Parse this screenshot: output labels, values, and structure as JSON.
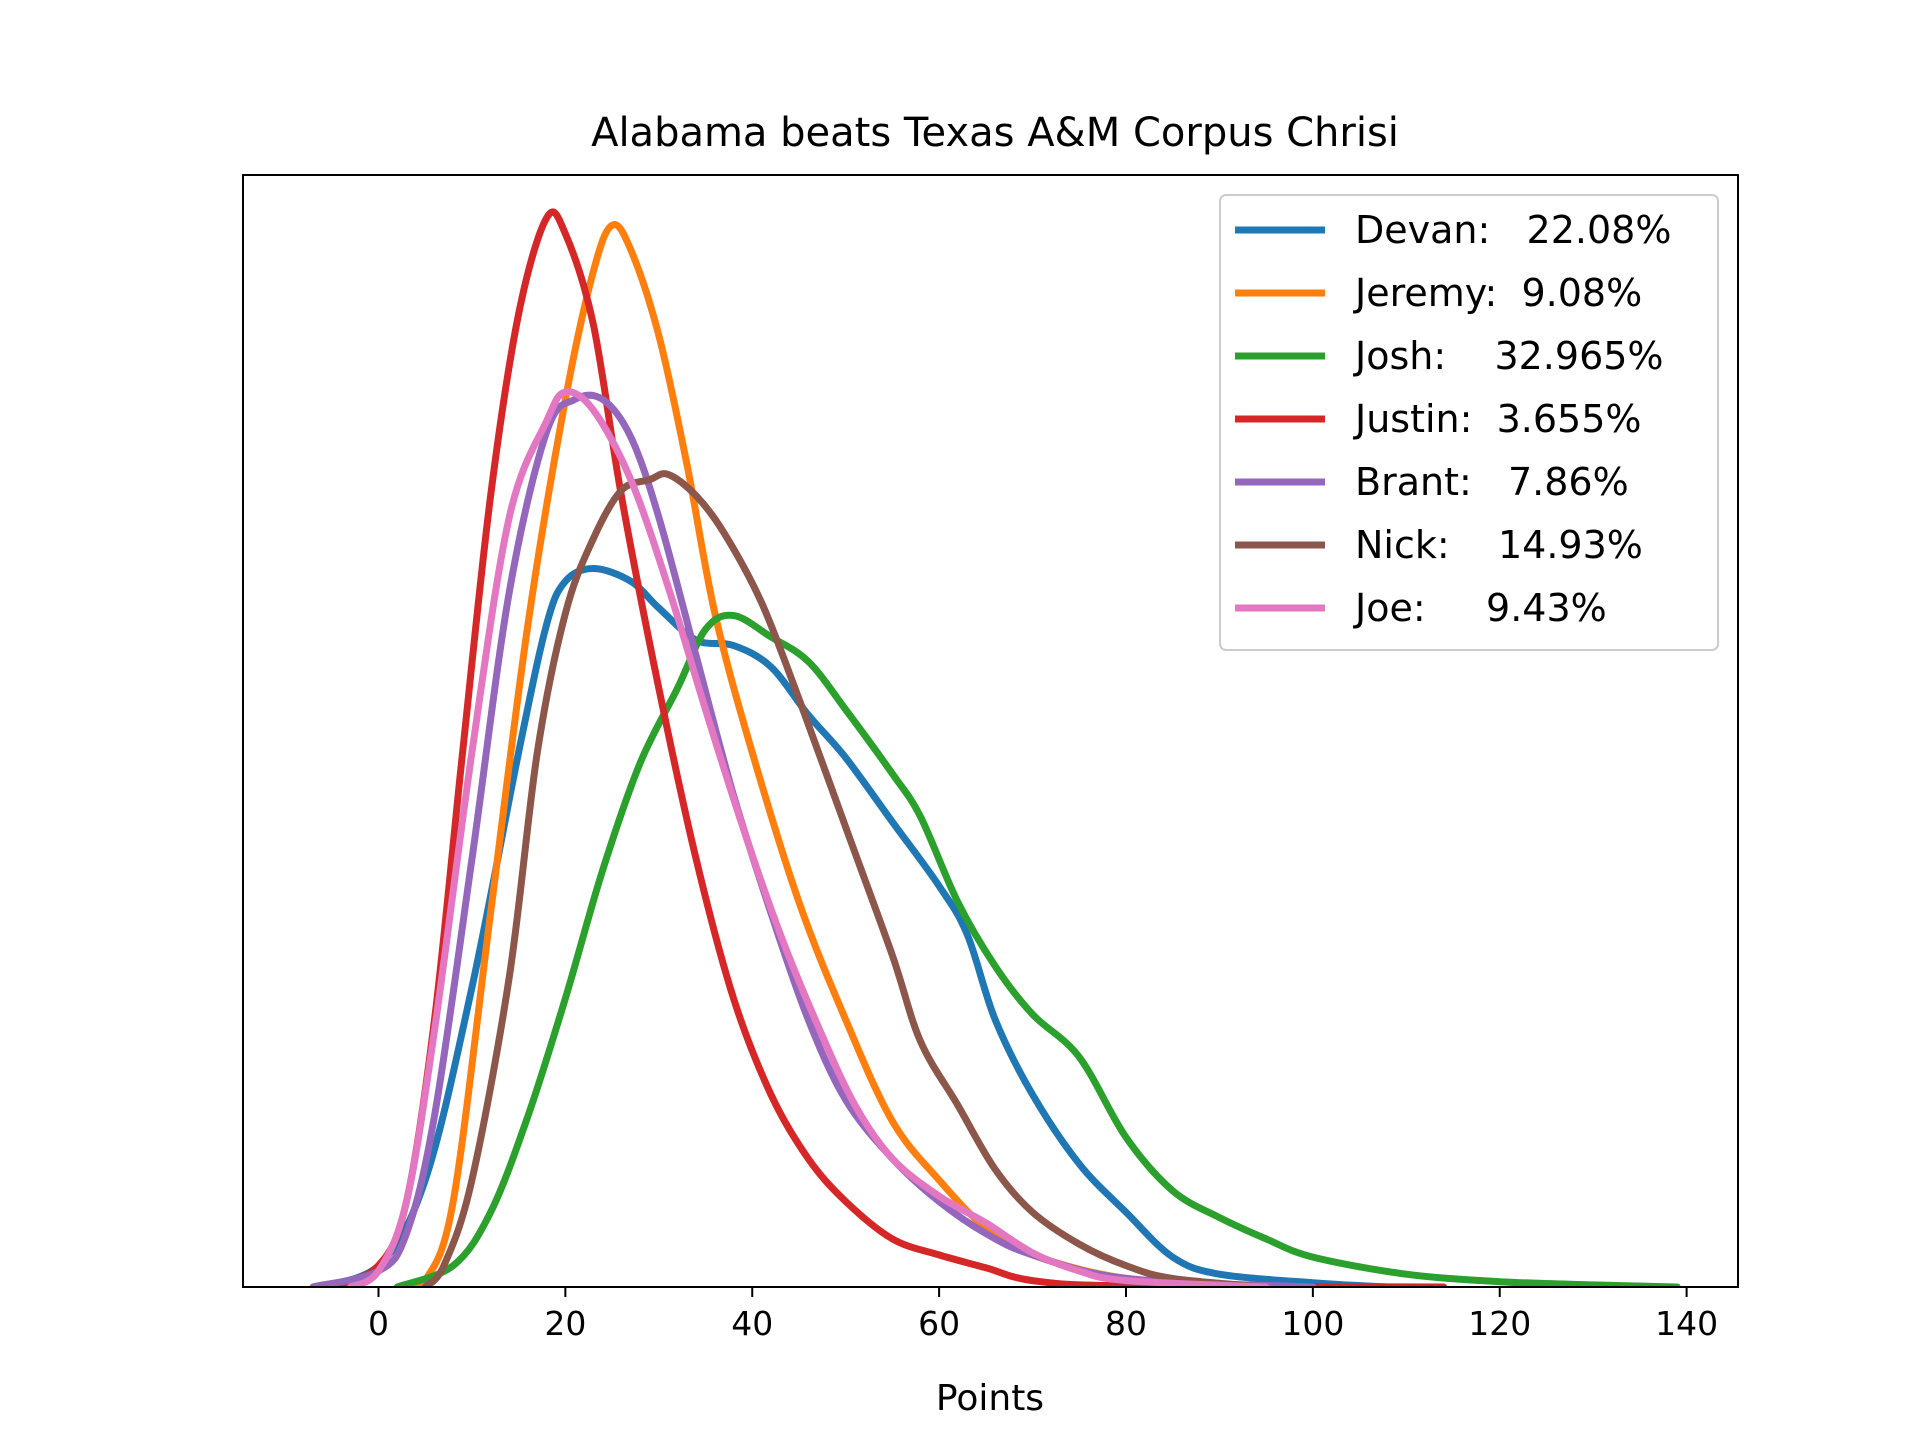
{
  "chart_data": {
    "type": "line",
    "title": "Alabama beats Texas A&M Corpus Chrisi",
    "xlabel": "Points",
    "ylabel": "",
    "xlim": [
      -14.5,
      145.5
    ],
    "ylim": [
      0,
      1.04
    ],
    "xticks": [
      0,
      20,
      40,
      60,
      80,
      100,
      120,
      140
    ],
    "grid": false,
    "legend_position": "top-right",
    "series": [
      {
        "name": "Devan:   22.08%",
        "color": "#1f77b4",
        "points": [
          [
            -7,
            0
          ],
          [
            0,
            0.02
          ],
          [
            5,
            0.1
          ],
          [
            10,
            0.28
          ],
          [
            15,
            0.5
          ],
          [
            18,
            0.62
          ],
          [
            20,
            0.66
          ],
          [
            23,
            0.672
          ],
          [
            27,
            0.66
          ],
          [
            30,
            0.635
          ],
          [
            34,
            0.605
          ],
          [
            38,
            0.6
          ],
          [
            42,
            0.58
          ],
          [
            46,
            0.535
          ],
          [
            50,
            0.495
          ],
          [
            55,
            0.435
          ],
          [
            60,
            0.375
          ],
          [
            63,
            0.33
          ],
          [
            66,
            0.25
          ],
          [
            70,
            0.18
          ],
          [
            75,
            0.115
          ],
          [
            80,
            0.07
          ],
          [
            85,
            0.028
          ],
          [
            90,
            0.012
          ],
          [
            100,
            0.004
          ],
          [
            108,
            0
          ]
        ]
      },
      {
        "name": "Jeremy:  9.08%",
        "color": "#ff7f0e",
        "points": [
          [
            3,
            0
          ],
          [
            5,
            0.006
          ],
          [
            8,
            0.08
          ],
          [
            12,
            0.35
          ],
          [
            16,
            0.62
          ],
          [
            20,
            0.83
          ],
          [
            23,
            0.95
          ],
          [
            25,
            0.993
          ],
          [
            27,
            0.97
          ],
          [
            30,
            0.89
          ],
          [
            33,
            0.77
          ],
          [
            36,
            0.63
          ],
          [
            40,
            0.5
          ],
          [
            45,
            0.36
          ],
          [
            50,
            0.25
          ],
          [
            55,
            0.155
          ],
          [
            60,
            0.1
          ],
          [
            65,
            0.055
          ],
          [
            70,
            0.03
          ],
          [
            80,
            0.008
          ],
          [
            95,
            0
          ]
        ]
      },
      {
        "name": "Josh:    32.965%",
        "color": "#2ca02c",
        "points": [
          [
            2,
            0
          ],
          [
            8,
            0.02
          ],
          [
            12,
            0.07
          ],
          [
            16,
            0.16
          ],
          [
            20,
            0.27
          ],
          [
            24,
            0.39
          ],
          [
            28,
            0.49
          ],
          [
            32,
            0.56
          ],
          [
            35,
            0.615
          ],
          [
            38,
            0.628
          ],
          [
            42,
            0.608
          ],
          [
            46,
            0.585
          ],
          [
            50,
            0.54
          ],
          [
            55,
            0.48
          ],
          [
            58,
            0.44
          ],
          [
            62,
            0.36
          ],
          [
            66,
            0.3
          ],
          [
            70,
            0.255
          ],
          [
            75,
            0.215
          ],
          [
            80,
            0.14
          ],
          [
            85,
            0.09
          ],
          [
            90,
            0.065
          ],
          [
            95,
            0.045
          ],
          [
            100,
            0.028
          ],
          [
            110,
            0.012
          ],
          [
            120,
            0.005
          ],
          [
            130,
            0.002
          ],
          [
            139,
            0
          ]
        ]
      },
      {
        "name": "Justin:  3.655%",
        "color": "#d62728",
        "points": [
          [
            -5,
            0
          ],
          [
            0,
            0.02
          ],
          [
            3,
            0.08
          ],
          [
            6,
            0.25
          ],
          [
            9,
            0.5
          ],
          [
            12,
            0.74
          ],
          [
            15,
            0.91
          ],
          [
            18,
            1.0
          ],
          [
            20,
            0.985
          ],
          [
            23,
            0.9
          ],
          [
            26,
            0.74
          ],
          [
            30,
            0.56
          ],
          [
            34,
            0.4
          ],
          [
            38,
            0.27
          ],
          [
            42,
            0.18
          ],
          [
            46,
            0.12
          ],
          [
            50,
            0.08
          ],
          [
            55,
            0.045
          ],
          [
            60,
            0.03
          ],
          [
            65,
            0.018
          ],
          [
            70,
            0.006
          ],
          [
            80,
            0.001
          ],
          [
            114,
            0
          ]
        ]
      },
      {
        "name": "Brant:   7.86%",
        "color": "#9467bd",
        "points": [
          [
            -7,
            0
          ],
          [
            0,
            0.015
          ],
          [
            3,
            0.05
          ],
          [
            6,
            0.16
          ],
          [
            10,
            0.4
          ],
          [
            14,
            0.65
          ],
          [
            18,
            0.8
          ],
          [
            21,
            0.83
          ],
          [
            24,
            0.83
          ],
          [
            27,
            0.795
          ],
          [
            30,
            0.72
          ],
          [
            34,
            0.59
          ],
          [
            38,
            0.46
          ],
          [
            42,
            0.35
          ],
          [
            46,
            0.25
          ],
          [
            50,
            0.175
          ],
          [
            55,
            0.12
          ],
          [
            60,
            0.08
          ],
          [
            65,
            0.05
          ],
          [
            70,
            0.03
          ],
          [
            80,
            0.008
          ],
          [
            100,
            0
          ]
        ]
      },
      {
        "name": "Nick:    14.93%",
        "color": "#8c564b",
        "points": [
          [
            5,
            0
          ],
          [
            7,
            0.02
          ],
          [
            10,
            0.1
          ],
          [
            14,
            0.29
          ],
          [
            17,
            0.5
          ],
          [
            20,
            0.63
          ],
          [
            23,
            0.7
          ],
          [
            26,
            0.745
          ],
          [
            29,
            0.755
          ],
          [
            31,
            0.76
          ],
          [
            34,
            0.74
          ],
          [
            37,
            0.705
          ],
          [
            41,
            0.64
          ],
          [
            45,
            0.55
          ],
          [
            50,
            0.43
          ],
          [
            55,
            0.31
          ],
          [
            58,
            0.23
          ],
          [
            62,
            0.17
          ],
          [
            66,
            0.11
          ],
          [
            70,
            0.07
          ],
          [
            75,
            0.04
          ],
          [
            80,
            0.02
          ],
          [
            85,
            0.008
          ],
          [
            95,
            0
          ]
        ]
      },
      {
        "name": "Joe:     9.43%",
        "color": "#e377c2",
        "points": [
          [
            -3,
            0
          ],
          [
            0,
            0.015
          ],
          [
            3,
            0.08
          ],
          [
            6,
            0.24
          ],
          [
            10,
            0.5
          ],
          [
            14,
            0.72
          ],
          [
            18,
            0.81
          ],
          [
            20,
            0.837
          ],
          [
            23,
            0.82
          ],
          [
            27,
            0.755
          ],
          [
            31,
            0.655
          ],
          [
            35,
            0.54
          ],
          [
            39,
            0.43
          ],
          [
            43,
            0.33
          ],
          [
            47,
            0.245
          ],
          [
            51,
            0.17
          ],
          [
            55,
            0.12
          ],
          [
            60,
            0.085
          ],
          [
            65,
            0.06
          ],
          [
            70,
            0.032
          ],
          [
            75,
            0.015
          ],
          [
            80,
            0.006
          ],
          [
            95,
            0
          ]
        ]
      }
    ]
  }
}
